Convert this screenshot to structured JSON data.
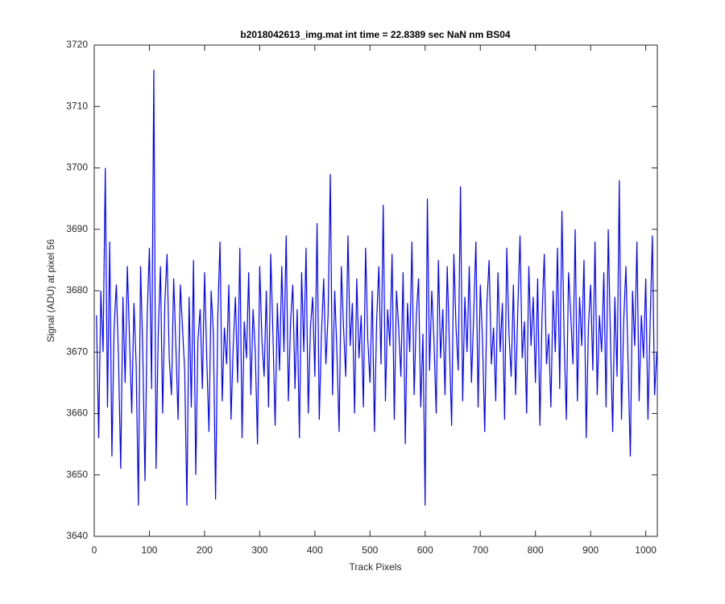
{
  "chart_data": {
    "type": "line",
    "title": "b2018042613_img.mat int time = 22.8389 sec  NaN nm BS04",
    "x_label": "Track Pixels",
    "y_label": "Signal (ADU) at pixel 56",
    "xlim": [
      0,
      1021
    ],
    "xticks": [
      0,
      100,
      200,
      300,
      400,
      500,
      600,
      700,
      800,
      900,
      1000
    ],
    "ylim": [
      3640,
      3720
    ],
    "yticks": [
      3640,
      3650,
      3660,
      3670,
      3680,
      3690,
      3700,
      3710,
      3720
    ],
    "x": [
      4,
      8,
      12,
      16,
      20,
      24,
      28,
      32,
      36,
      40,
      44,
      48,
      52,
      56,
      60,
      64,
      68,
      72,
      76,
      80,
      84,
      88,
      92,
      96,
      100,
      104,
      108,
      112,
      116,
      120,
      124,
      128,
      132,
      136,
      140,
      144,
      148,
      152,
      156,
      160,
      164,
      168,
      172,
      176,
      180,
      184,
      188,
      192,
      196,
      200,
      204,
      208,
      212,
      216,
      220,
      224,
      228,
      232,
      236,
      240,
      244,
      248,
      252,
      256,
      260,
      264,
      268,
      272,
      276,
      280,
      284,
      288,
      292,
      296,
      300,
      304,
      308,
      312,
      316,
      320,
      324,
      328,
      332,
      336,
      340,
      344,
      348,
      352,
      356,
      360,
      364,
      368,
      372,
      376,
      380,
      384,
      388,
      392,
      396,
      400,
      404,
      408,
      412,
      416,
      420,
      424,
      428,
      432,
      436,
      440,
      444,
      448,
      452,
      456,
      460,
      464,
      468,
      472,
      476,
      480,
      484,
      488,
      492,
      496,
      500,
      504,
      508,
      512,
      516,
      520,
      524,
      528,
      532,
      536,
      540,
      544,
      548,
      552,
      556,
      560,
      564,
      568,
      572,
      576,
      580,
      584,
      588,
      592,
      596,
      600,
      604,
      608,
      612,
      616,
      620,
      624,
      628,
      632,
      636,
      640,
      644,
      648,
      652,
      656,
      660,
      664,
      668,
      672,
      676,
      680,
      684,
      688,
      692,
      696,
      700,
      704,
      708,
      712,
      716,
      720,
      724,
      728,
      732,
      736,
      740,
      744,
      748,
      752,
      756,
      760,
      764,
      768,
      772,
      776,
      780,
      784,
      788,
      792,
      796,
      800,
      804,
      808,
      812,
      816,
      820,
      824,
      828,
      832,
      836,
      840,
      844,
      848,
      852,
      856,
      860,
      864,
      868,
      872,
      876,
      880,
      884,
      888,
      892,
      896,
      900,
      904,
      908,
      912,
      916,
      920,
      924,
      928,
      932,
      936,
      940,
      944,
      948,
      952,
      956,
      960,
      964,
      968,
      972,
      976,
      980,
      984,
      988,
      992,
      996,
      1000,
      1004,
      1008,
      1012,
      1016,
      1020
    ],
    "series": [
      {
        "color": "#0000ff",
        "values": [
          3676,
          3656,
          3680,
          3670,
          3700,
          3661,
          3688,
          3653,
          3674,
          3681,
          3669,
          3651,
          3679,
          3665,
          3684,
          3672,
          3660,
          3678,
          3668,
          3645,
          3684,
          3670,
          3649,
          3676,
          3687,
          3664,
          3716,
          3651,
          3673,
          3684,
          3660,
          3678,
          3686,
          3669,
          3663,
          3682,
          3671,
          3659,
          3681,
          3674,
          3667,
          3645,
          3679,
          3661,
          3685,
          3650,
          3672,
          3677,
          3664,
          3683,
          3669,
          3657,
          3680,
          3673,
          3646,
          3676,
          3688,
          3662,
          3674,
          3668,
          3681,
          3659,
          3671,
          3679,
          3665,
          3687,
          3656,
          3675,
          3669,
          3683,
          3663,
          3677,
          3670,
          3655,
          3684,
          3672,
          3666,
          3680,
          3661,
          3686,
          3673,
          3658,
          3678,
          3667,
          3684,
          3670,
          3689,
          3662,
          3675,
          3681,
          3664,
          3677,
          3656,
          3683,
          3670,
          3687,
          3660,
          3674,
          3679,
          3666,
          3691,
          3659,
          3673,
          3682,
          3668,
          3676,
          3699,
          3663,
          3680,
          3670,
          3657,
          3684,
          3674,
          3666,
          3689,
          3671,
          3678,
          3660,
          3682,
          3669,
          3676,
          3661,
          3687,
          3672,
          3665,
          3680,
          3657,
          3675,
          3684,
          3668,
          3694,
          3662,
          3677,
          3671,
          3686,
          3659,
          3680,
          3674,
          3666,
          3683,
          3655,
          3678,
          3670,
          3688,
          3663,
          3676,
          3682,
          3661,
          3673,
          3645,
          3695,
          3667,
          3680,
          3672,
          3660,
          3685,
          3669,
          3677,
          3663,
          3684,
          3671,
          3658,
          3686,
          3674,
          3667,
          3697,
          3662,
          3679,
          3670,
          3684,
          3665,
          3676,
          3688,
          3661,
          3681,
          3672,
          3657,
          3678,
          3685,
          3668,
          3674,
          3662,
          3683,
          3670,
          3678,
          3659,
          3687,
          3673,
          3666,
          3681,
          3663,
          3677,
          3689,
          3669,
          3675,
          3660,
          3684,
          3671,
          3679,
          3665,
          3682,
          3658,
          3676,
          3686,
          3668,
          3673,
          3661,
          3680,
          3670,
          3687,
          3664,
          3693,
          3672,
          3659,
          3683,
          3676,
          3668,
          3690,
          3662,
          3679,
          3671,
          3685,
          3656,
          3674,
          3681,
          3667,
          3688,
          3663,
          3676,
          3670,
          3683,
          3661,
          3690,
          3672,
          3657,
          3679,
          3666,
          3698,
          3659,
          3675,
          3684,
          3668,
          3653,
          3680,
          3671,
          3688,
          3662,
          3676,
          3669,
          3682,
          3659,
          3675,
          3689,
          3663,
          3670
        ]
      }
    ]
  }
}
